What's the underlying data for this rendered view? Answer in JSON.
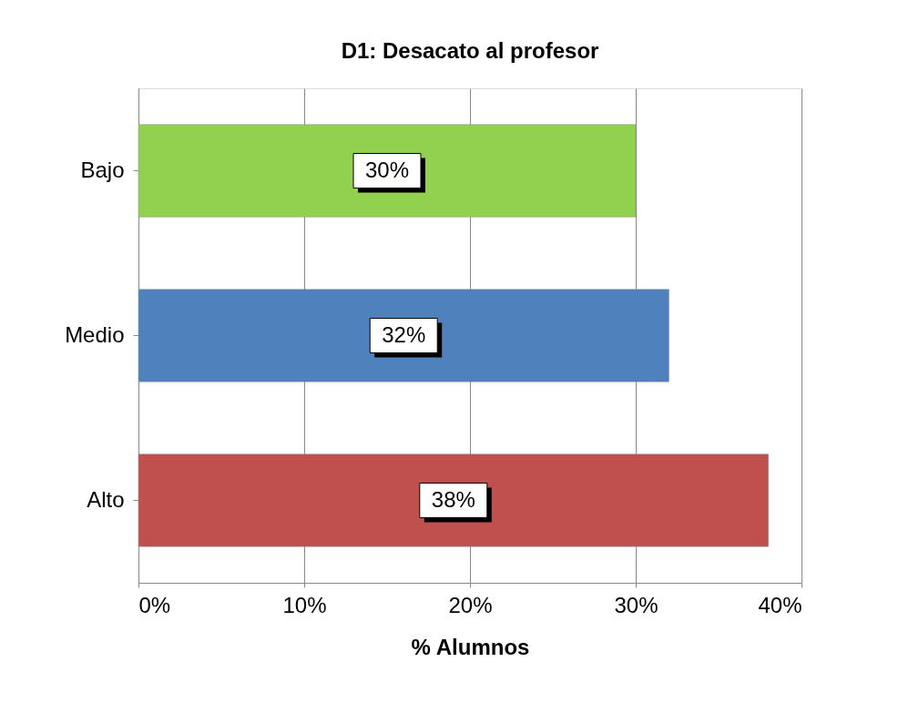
{
  "chart_data": {
    "type": "bar",
    "orientation": "horizontal",
    "title": "D1: Desacato al profesor",
    "xlabel": "% Alumnos",
    "categories": [
      "Bajo",
      "Medio",
      "Alto"
    ],
    "values": [
      30,
      32,
      38
    ],
    "colors": [
      "#92d050",
      "#4f81bd",
      "#c0504d"
    ],
    "value_labels": [
      "30%",
      "32%",
      "38%"
    ],
    "xlim": [
      0,
      40
    ],
    "xticks": [
      {
        "value": 0,
        "label": "0%"
      },
      {
        "value": 10,
        "label": "10%"
      },
      {
        "value": 20,
        "label": "20%"
      },
      {
        "value": 30,
        "label": "30%"
      },
      {
        "value": 40,
        "label": "40%"
      }
    ],
    "grid": "x"
  }
}
